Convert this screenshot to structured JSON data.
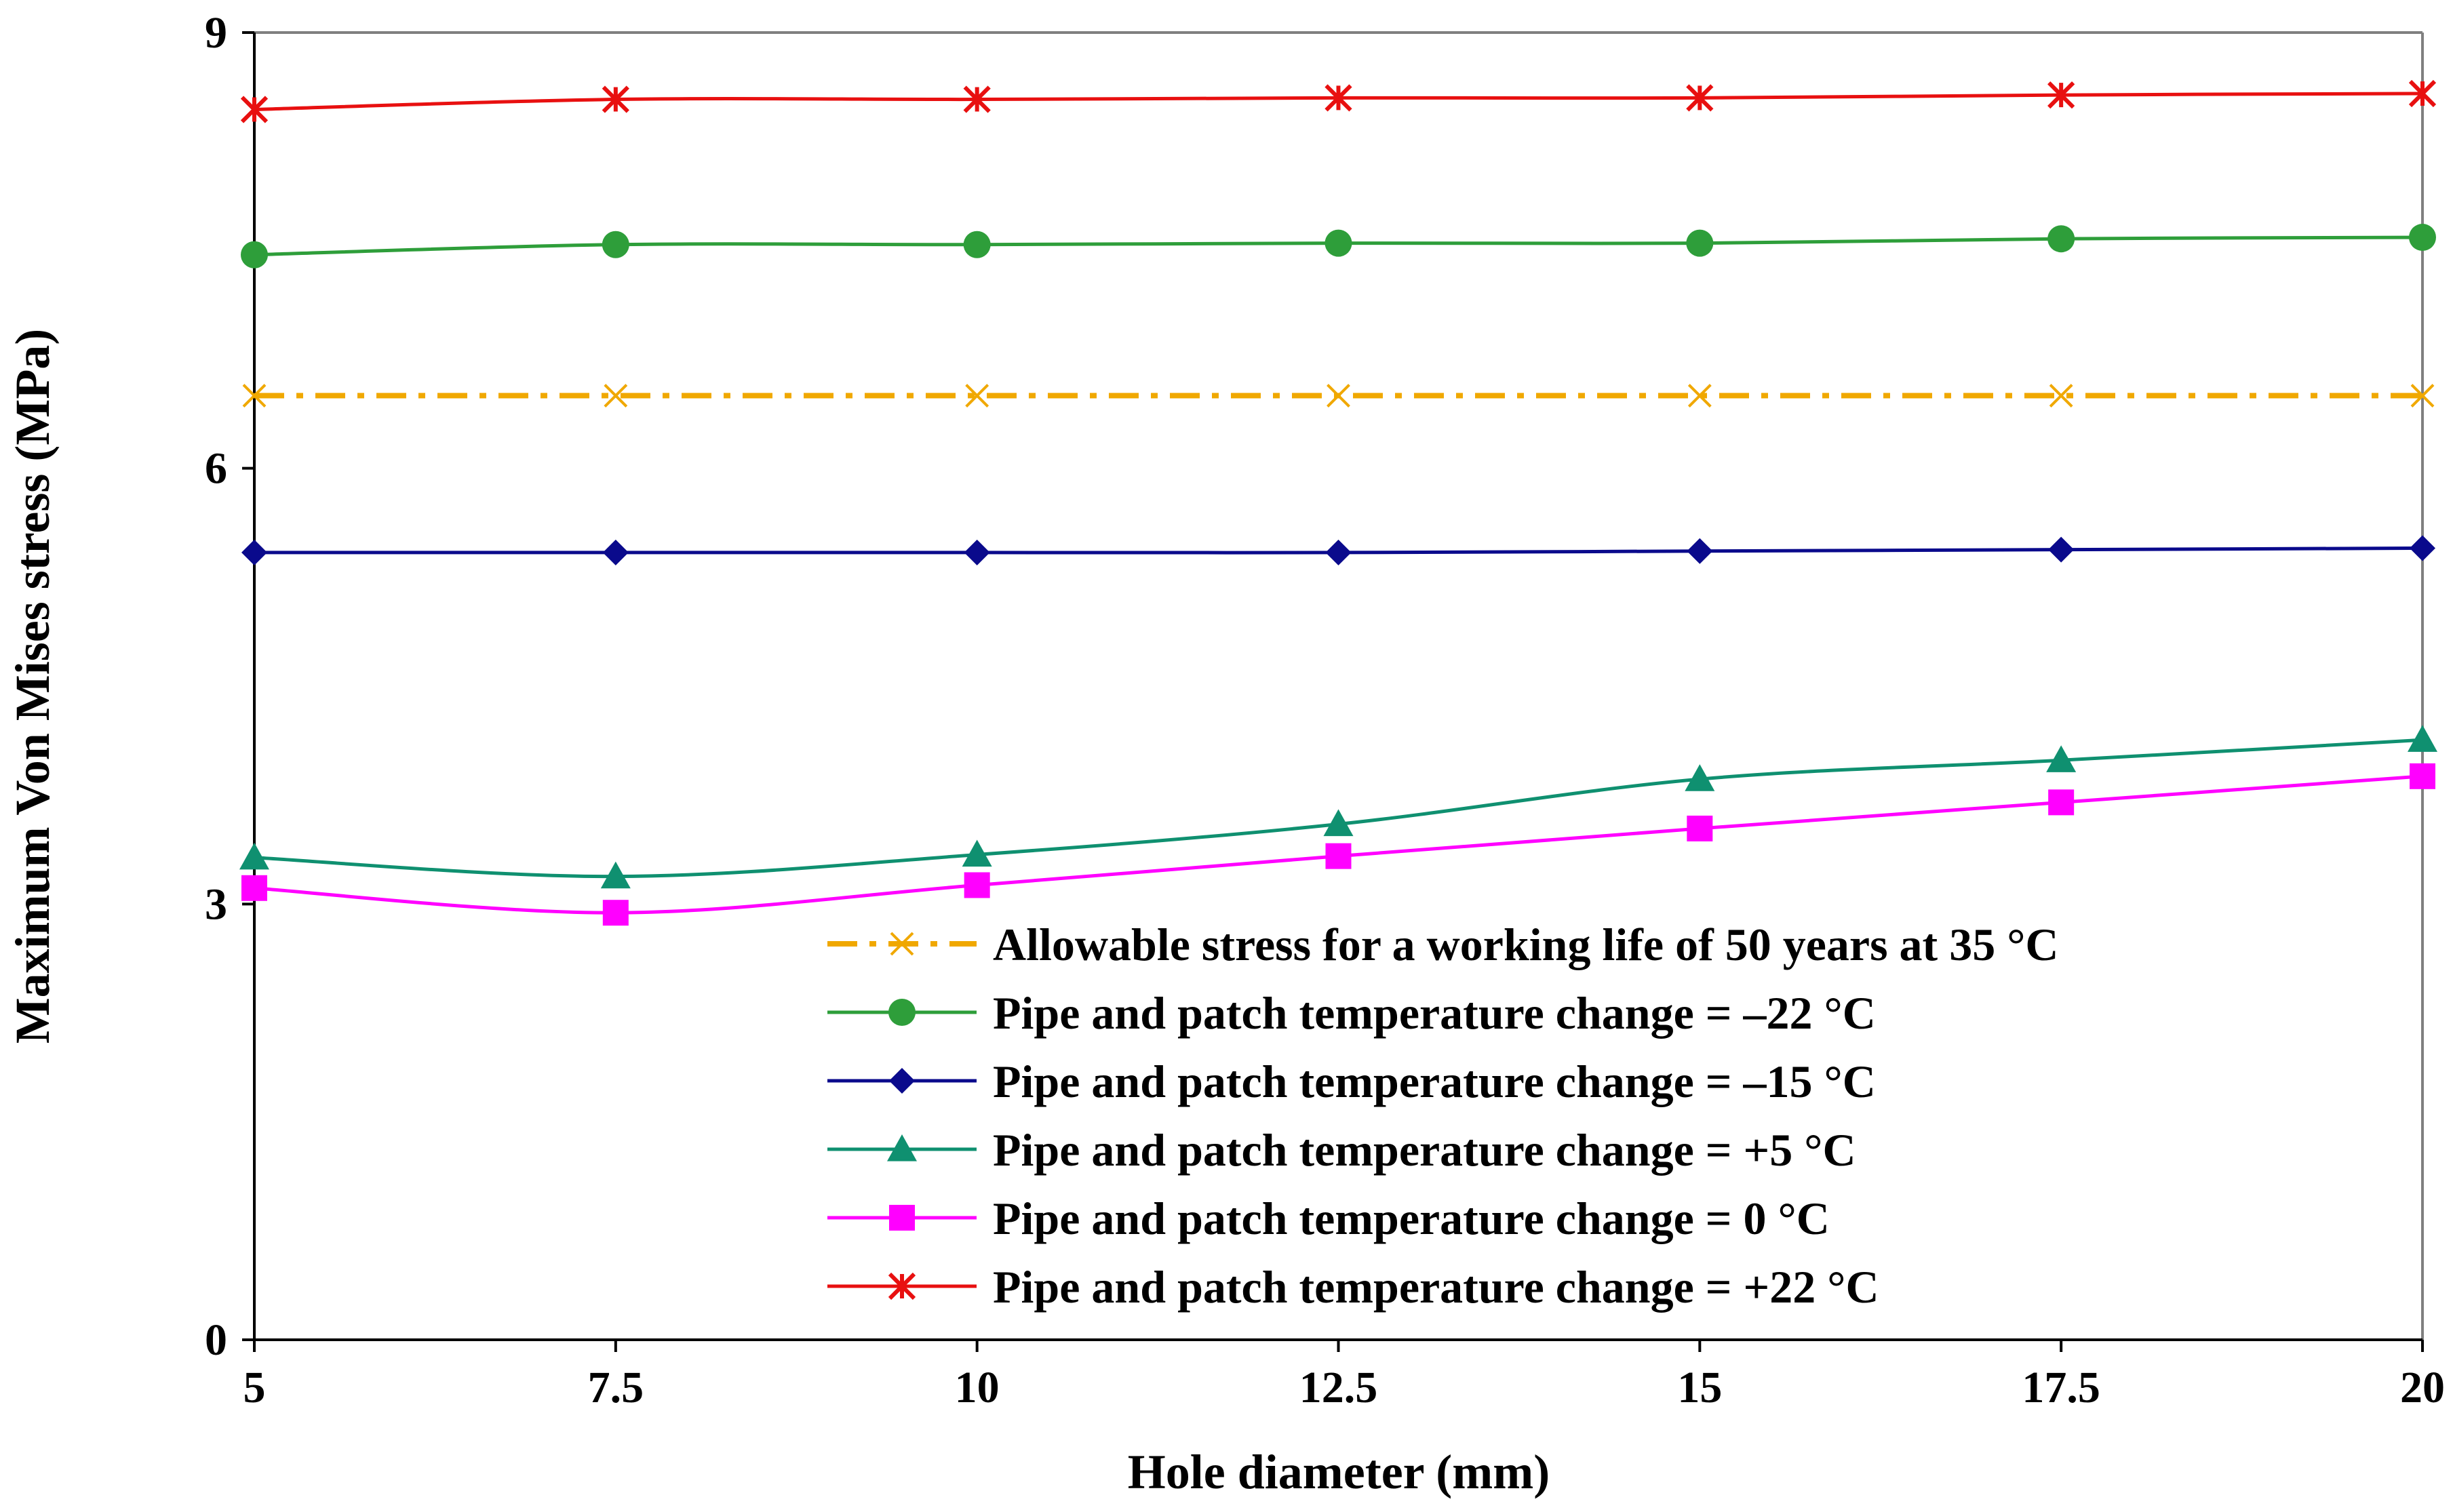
{
  "chart_data": {
    "type": "line",
    "title": "",
    "xlabel": "Hole diameter (mm)",
    "ylabel": "Maximum Von Mises stress (MPa)",
    "x": [
      5,
      7.5,
      10,
      12.5,
      15,
      17.5,
      20
    ],
    "x_ticks": [
      "5",
      "7.5",
      "10",
      "12.5",
      "15",
      "17.5",
      "20"
    ],
    "xlim": [
      5,
      20
    ],
    "ylim": [
      0,
      9
    ],
    "y_ticks": [
      "0",
      "3",
      "6",
      "9"
    ],
    "grid": false,
    "legend_position": "bottom-right",
    "series": [
      {
        "name": "Allowable stress for a working life of 50 years at 35 °C",
        "values": [
          6.5,
          6.5,
          6.5,
          6.5,
          6.5,
          6.5,
          6.5
        ],
        "color": "#f0a800",
        "marker": "x",
        "dash": "dash-dot"
      },
      {
        "name": "Pipe and patch temperature change = –22 °C",
        "values": [
          7.47,
          7.54,
          7.54,
          7.55,
          7.55,
          7.58,
          7.59
        ],
        "color": "#2e9e3a",
        "marker": "circle",
        "dash": "solid"
      },
      {
        "name": "Pipe and patch temperature change = –15 °C",
        "values": [
          5.42,
          5.42,
          5.42,
          5.42,
          5.43,
          5.44,
          5.45
        ],
        "color": "#0a0a8c",
        "marker": "diamond",
        "dash": "solid"
      },
      {
        "name": "Pipe and patch temperature change = +5 °C",
        "values": [
          3.32,
          3.19,
          3.34,
          3.55,
          3.86,
          3.99,
          4.13
        ],
        "color": "#0f9070",
        "marker": "triangle",
        "dash": "solid"
      },
      {
        "name": "Pipe and patch temperature change = 0 °C",
        "values": [
          3.11,
          2.94,
          3.13,
          3.33,
          3.52,
          3.7,
          3.88
        ],
        "color": "#ff00ff",
        "marker": "square",
        "dash": "solid"
      },
      {
        "name": "Pipe and patch temperature change = +22 °C",
        "values": [
          8.47,
          8.54,
          8.54,
          8.55,
          8.55,
          8.57,
          8.58
        ],
        "color": "#e81010",
        "marker": "asterisk",
        "dash": "solid"
      }
    ]
  }
}
